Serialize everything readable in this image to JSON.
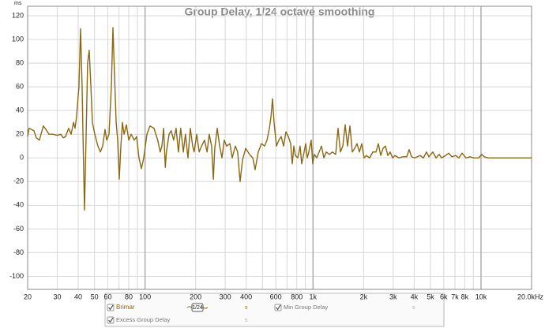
{
  "chart_data": {
    "type": "line",
    "title": "Group Delay, 1/24 octave smoothing",
    "y_unit": "ms",
    "xscale": "log",
    "grid": true,
    "xlim": [
      20,
      20000
    ],
    "ylim": [
      -111,
      128
    ],
    "yticks": [
      -100,
      -80,
      -60,
      -40,
      -20,
      0,
      20,
      40,
      60,
      80,
      100,
      120
    ],
    "xticks": [
      20,
      30,
      40,
      50,
      60,
      80,
      100,
      200,
      300,
      400,
      600,
      800,
      {
        "value": 1000,
        "label": "1k"
      },
      {
        "value": 2000,
        "label": "2k"
      },
      {
        "value": 3000,
        "label": "3k"
      },
      {
        "value": 4000,
        "label": "4k"
      },
      {
        "value": 5000,
        "label": "5k"
      },
      {
        "value": 6000,
        "label": "6k"
      },
      {
        "value": 7000,
        "label": "7k"
      },
      {
        "value": 8000,
        "label": "8k"
      },
      {
        "value": 10000,
        "label": "10k"
      },
      {
        "value": 20000,
        "label": "20.0kHz"
      }
    ],
    "xminorticks": [
      70,
      90,
      500,
      700,
      900,
      9000
    ],
    "series": [
      {
        "name": "Brimar",
        "color": "#8a6812",
        "smoothing": "1/24",
        "unit": "s",
        "x": [
          20,
          20.4,
          21.1,
          21.8,
          22.5,
          23.5,
          24.8,
          25.7,
          26.8,
          28.3,
          29.9,
          31.5,
          32.6,
          33.6,
          35.1,
          36.3,
          37.5,
          38.3,
          39.1,
          40.4,
          41.3,
          42.2,
          42.7,
          43.6,
          44.6,
          45.5,
          46.5,
          47.6,
          48.6,
          50.2,
          52.4,
          54.2,
          55.9,
          57.8,
          59.1,
          61,
          63,
          64.4,
          65.8,
          67.3,
          68.7,
          70.2,
          71.8,
          73.3,
          75,
          77.4,
          80,
          82.6,
          86.3,
          89.1,
          92,
          95.1,
          98.2,
          102.6,
          107,
          113,
          119,
          123,
          126,
          129,
          132,
          134,
          139,
          143,
          148,
          153,
          158,
          163,
          169,
          174,
          180,
          186,
          192,
          196,
          203,
          210,
          217,
          226,
          234,
          241,
          249,
          255,
          260,
          269,
          278,
          287,
          296,
          306,
          320,
          330,
          345,
          356,
          368,
          380,
          397,
          410,
          424,
          438,
          452,
          472,
          493,
          515,
          532,
          550,
          562,
          574,
          586,
          606,
          626,
          646,
          668,
          690,
          713,
          736,
          752,
          769,
          785,
          811,
          838,
          856,
          885,
          904,
          924,
          944,
          975,
          996,
          1018,
          1052,
          1087,
          1123,
          1160,
          1198,
          1251,
          1306,
          1364,
          1409,
          1456,
          1504,
          1554,
          1605,
          1658,
          1713,
          1770,
          1828,
          1888,
          1950,
          2014,
          2080,
          2173,
          2269,
          2370,
          2448,
          2529,
          2612,
          2698,
          2788,
          2880,
          2975,
          3074,
          3245,
          3425,
          3616,
          3735,
          3858,
          4029,
          4345,
          4538,
          4738,
          4895,
          5167,
          5396,
          5634,
          5821,
          6145,
          6417,
          6700,
          7073,
          7386,
          7712,
          8142,
          8596,
          9074,
          9684,
          10112,
          10446,
          11026,
          13992,
          20000
        ],
        "values": [
          18,
          25,
          24,
          23,
          17,
          15,
          27,
          24,
          20,
          20,
          19,
          20,
          17,
          18,
          25,
          20,
          30,
          25,
          35,
          60,
          109,
          60,
          20,
          -44,
          20,
          80,
          91,
          60,
          30,
          20,
          10,
          5,
          10,
          24,
          15,
          20,
          60,
          110,
          70,
          30,
          15,
          -18,
          10,
          30,
          20,
          28,
          15,
          20,
          15,
          18,
          0,
          -9,
          0,
          20,
          27,
          25,
          15,
          5,
          10,
          25,
          -8,
          5,
          20,
          23,
          15,
          25,
          5,
          25,
          5,
          20,
          0,
          25,
          10,
          5,
          20,
          5,
          10,
          15,
          5,
          20,
          10,
          -18,
          8,
          25,
          10,
          0,
          15,
          10,
          12,
          0,
          10,
          5,
          -20,
          -2,
          8,
          5,
          2,
          0,
          -10,
          5,
          12,
          10,
          15,
          25,
          35,
          50,
          30,
          10,
          15,
          18,
          10,
          22,
          18,
          12,
          -5,
          10,
          2,
          0,
          10,
          -5,
          5,
          12,
          0,
          5,
          15,
          -5,
          3,
          0,
          5,
          10,
          0,
          5,
          3,
          5,
          3,
          25,
          5,
          10,
          28,
          10,
          27,
          5,
          8,
          12,
          5,
          12,
          0,
          2,
          0,
          5,
          5,
          12,
          2,
          8,
          10,
          2,
          5,
          0,
          2,
          0,
          1,
          1,
          7,
          1,
          0,
          2,
          0,
          5,
          1,
          5,
          0,
          3,
          0,
          2,
          4,
          1,
          2,
          0,
          4,
          0,
          1,
          0,
          0,
          3,
          1,
          0,
          0,
          0
        ]
      }
    ],
    "legend_extra": [
      {
        "name": "Min Group Delay",
        "unit": "s"
      },
      {
        "name": "Excess Group Delay",
        "unit": "s"
      }
    ]
  }
}
